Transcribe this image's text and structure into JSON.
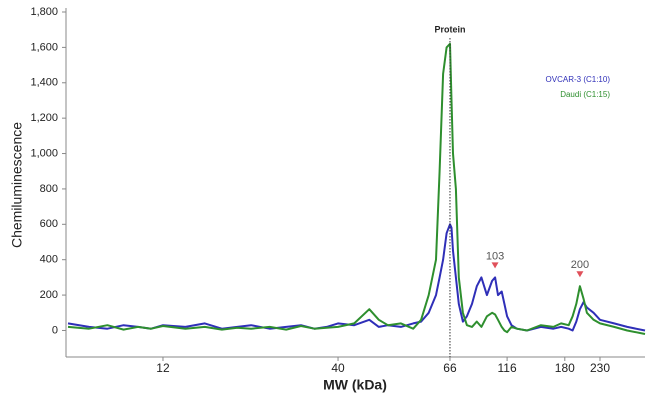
{
  "chart_data": {
    "type": "line",
    "x_label": "MW (kDa)",
    "y_label": "Chemiluminescence",
    "x": [
      6,
      7,
      8,
      9,
      10,
      11,
      12,
      14,
      16,
      18,
      20,
      22,
      25,
      28,
      31,
      34,
      37,
      40,
      43,
      46,
      48,
      50,
      53,
      56,
      58,
      60,
      62,
      63,
      64,
      65,
      66,
      67,
      68,
      70,
      72,
      75,
      78,
      82,
      86,
      90,
      95,
      100,
      103,
      106,
      110,
      113,
      116,
      120,
      125,
      135,
      150,
      165,
      175,
      185,
      190,
      195,
      200,
      205,
      210,
      220,
      230,
      250,
      270,
      300
    ],
    "series": [
      {
        "name": "OVCAR-3 (C1:10)",
        "color": "#2f2fb8",
        "values": [
          40,
          20,
          10,
          30,
          20,
          10,
          30,
          20,
          40,
          10,
          20,
          30,
          10,
          20,
          30,
          10,
          20,
          40,
          30,
          60,
          20,
          30,
          20,
          40,
          50,
          100,
          200,
          300,
          400,
          550,
          600,
          580,
          450,
          300,
          150,
          50,
          80,
          150,
          250,
          300,
          200,
          280,
          300,
          200,
          220,
          150,
          80,
          30,
          10,
          0,
          20,
          10,
          20,
          10,
          0,
          50,
          120,
          160,
          130,
          100,
          60,
          40,
          20,
          0
        ]
      },
      {
        "name": "Daudi (C1:15)",
        "color": "#2e8f2e",
        "values": [
          20,
          10,
          30,
          5,
          20,
          10,
          25,
          10,
          20,
          5,
          15,
          10,
          20,
          5,
          25,
          10,
          15,
          20,
          40,
          120,
          60,
          30,
          40,
          10,
          60,
          200,
          400,
          900,
          1450,
          1600,
          1620,
          1300,
          1000,
          800,
          300,
          100,
          30,
          20,
          50,
          20,
          80,
          100,
          90,
          60,
          20,
          0,
          -10,
          20,
          10,
          0,
          30,
          20,
          40,
          30,
          80,
          150,
          250,
          180,
          100,
          60,
          40,
          20,
          0,
          -20
        ]
      }
    ],
    "xlim": [
      6,
      300
    ],
    "xticks": [
      12,
      40,
      66,
      116,
      180,
      230
    ],
    "ylim": [
      -150,
      1800
    ],
    "yticks": [
      0,
      200,
      400,
      600,
      800,
      {
        "value": 1000,
        "label": "1,000"
      },
      {
        "value": 1200,
        "label": "1,200"
      },
      {
        "value": 1400,
        "label": "1,400"
      },
      {
        "value": 1600,
        "label": "1,600"
      },
      {
        "value": 1800,
        "label": "1,800"
      }
    ],
    "grid": false,
    "legend": "upper right",
    "annotations": [
      {
        "text": "Protein",
        "x": 66
      },
      {
        "text": "103",
        "x": 103,
        "y": 300
      },
      {
        "text": "200",
        "x": 200,
        "y": 250
      }
    ]
  }
}
